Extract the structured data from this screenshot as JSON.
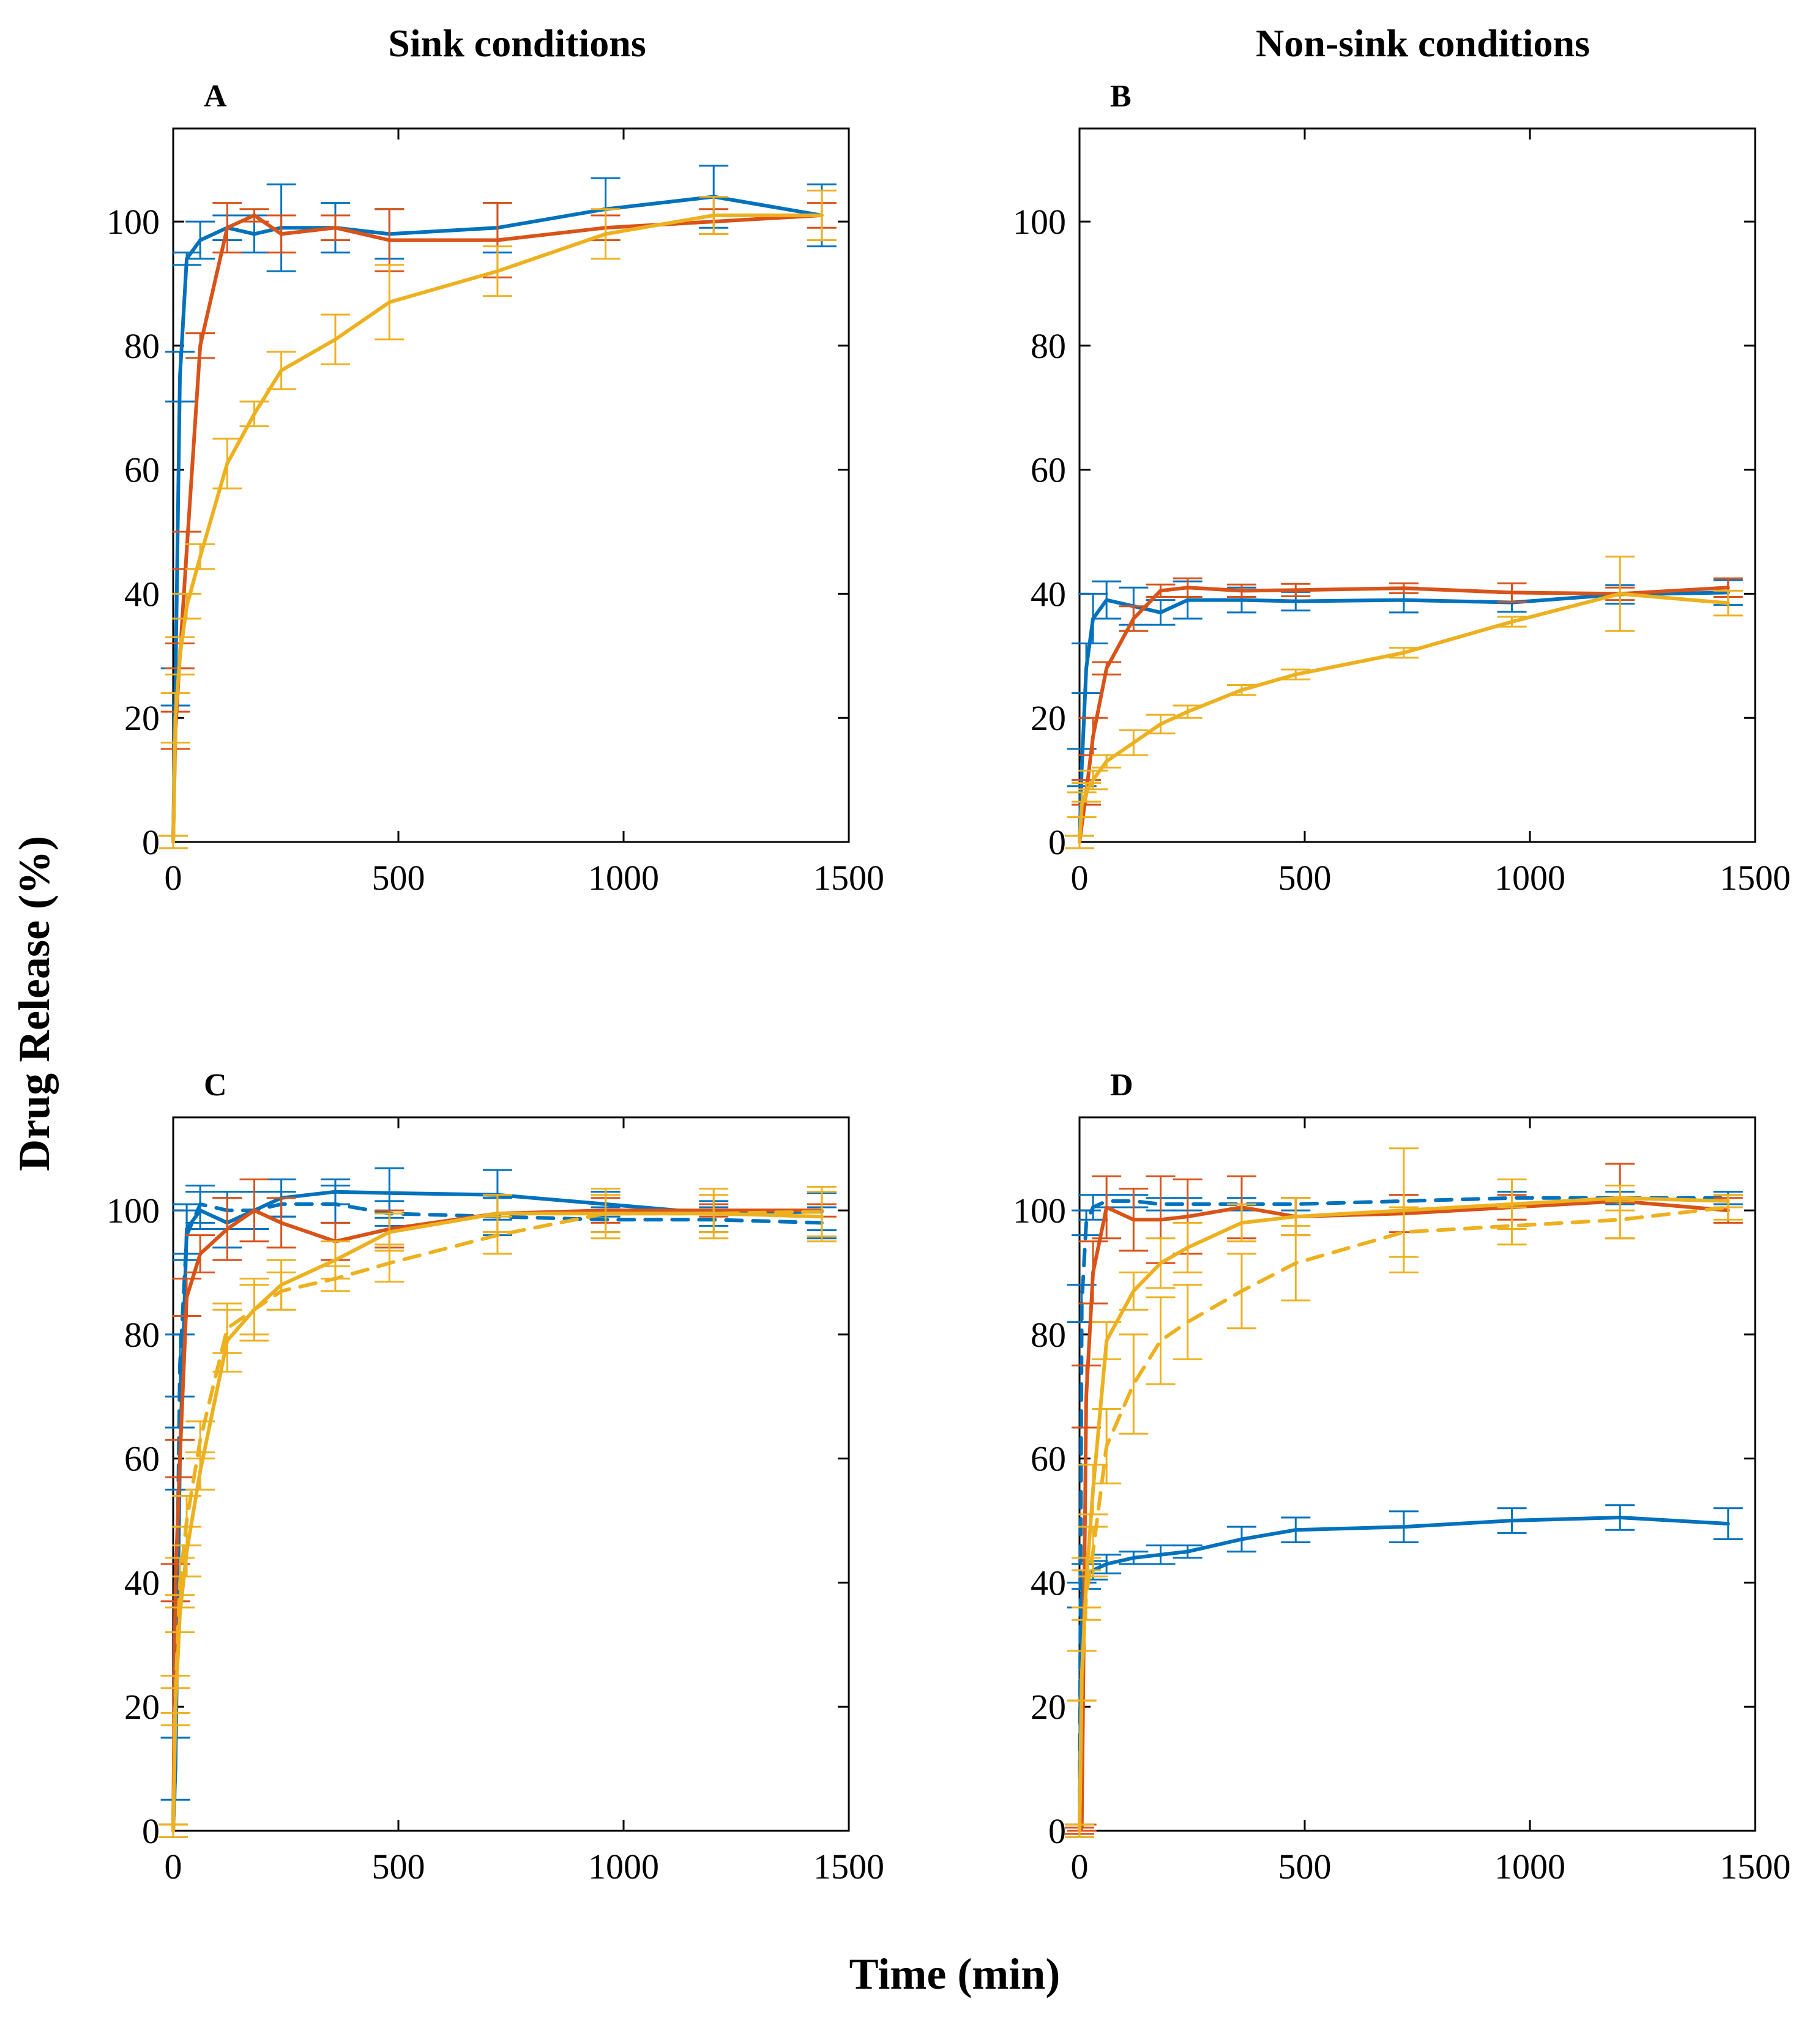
{
  "figure": {
    "column_titles": [
      "Sink conditions",
      "Non-sink conditions"
    ],
    "xlabel": "Time (min)",
    "ylabel": "Drug Release (%)",
    "series_colors": {
      "blue": "#0072BD",
      "orange": "#D95319",
      "yellow": "#EDB120"
    }
  },
  "chart_data": [
    {
      "type": "line",
      "panel": "A",
      "xlim": [
        0,
        1500
      ],
      "ylim": [
        0,
        115
      ],
      "xticks": [
        0,
        500,
        1000,
        1500
      ],
      "yticks": [
        0,
        20,
        40,
        60,
        80,
        100
      ],
      "grid": false,
      "series": [
        {
          "color": "blue",
          "style": "solid",
          "x": [
            0,
            5,
            15,
            30,
            60,
            120,
            180,
            240,
            360,
            480,
            720,
            960,
            1200,
            1440
          ],
          "y": [
            0,
            25,
            75,
            94,
            97,
            99,
            98,
            99,
            99,
            98,
            99,
            102,
            104,
            101
          ],
          "err": [
            1,
            3,
            4,
            1,
            3,
            2,
            3,
            7,
            4,
            4,
            4,
            5,
            5,
            5
          ]
        },
        {
          "color": "orange",
          "style": "solid",
          "x": [
            0,
            5,
            15,
            30,
            60,
            120,
            180,
            240,
            360,
            480,
            720,
            960,
            1200,
            1440
          ],
          "y": [
            0,
            18,
            30,
            47,
            80,
            99,
            101,
            98,
            99,
            97,
            97,
            99,
            100,
            101
          ],
          "err": [
            1,
            3,
            2,
            3,
            2,
            4,
            1,
            3,
            2,
            5,
            6,
            2,
            2,
            2
          ]
        },
        {
          "color": "yellow",
          "style": "solid",
          "x": [
            0,
            5,
            15,
            30,
            60,
            120,
            180,
            240,
            360,
            480,
            720,
            960,
            1200,
            1440
          ],
          "y": [
            0,
            20,
            30,
            38,
            46,
            61,
            69,
            76,
            81,
            87,
            92,
            98,
            101,
            101
          ],
          "err": [
            1,
            4,
            3,
            2,
            2,
            4,
            2,
            3,
            4,
            6,
            4,
            4,
            3,
            4
          ]
        }
      ]
    },
    {
      "type": "line",
      "panel": "B",
      "xlim": [
        0,
        1500
      ],
      "ylim": [
        0,
        115
      ],
      "xticks": [
        0,
        500,
        1000,
        1500
      ],
      "yticks": [
        0,
        20,
        40,
        60,
        80,
        100
      ],
      "grid": false,
      "series": [
        {
          "color": "blue",
          "style": "solid",
          "x": [
            0,
            5,
            15,
            30,
            60,
            120,
            180,
            240,
            360,
            480,
            720,
            960,
            1200,
            1440
          ],
          "y": [
            0,
            12,
            28,
            36,
            39,
            38,
            37,
            39,
            39,
            38.8,
            39,
            38.6,
            39.9,
            40.2
          ],
          "err": [
            1,
            3,
            4,
            4,
            3,
            3,
            2,
            3,
            2,
            1.5,
            2,
            1.5,
            1.5,
            2
          ]
        },
        {
          "color": "orange",
          "style": "solid",
          "x": [
            0,
            15,
            30,
            60,
            120,
            180,
            240,
            360,
            480,
            720,
            960,
            1200,
            1440
          ],
          "y": [
            0,
            8,
            17,
            28,
            36,
            40.5,
            41,
            40.5,
            40.6,
            40.9,
            40.2,
            40,
            41
          ],
          "err": [
            1,
            2,
            3,
            1,
            2,
            1,
            1.5,
            1,
            1,
            0.8,
            1.5,
            1,
            1.5
          ]
        },
        {
          "color": "yellow",
          "style": "solid",
          "x": [
            0,
            5,
            15,
            30,
            60,
            120,
            180,
            240,
            360,
            480,
            720,
            960,
            1200,
            1440
          ],
          "y": [
            0,
            6,
            8,
            10,
            13,
            16,
            19,
            21,
            24.5,
            27,
            30.5,
            35.5,
            40,
            38.5
          ],
          "err": [
            1,
            2,
            1.5,
            1.5,
            1,
            2,
            1.5,
            1,
            0.8,
            0.8,
            0.8,
            0.8,
            6,
            2
          ]
        }
      ]
    },
    {
      "type": "line",
      "panel": "C",
      "xlim": [
        0,
        1500
      ],
      "ylim": [
        0,
        115
      ],
      "xticks": [
        0,
        500,
        1000,
        1500
      ],
      "yticks": [
        0,
        20,
        40,
        60,
        80,
        100
      ],
      "grid": false,
      "series": [
        {
          "color": "blue",
          "style": "solid",
          "x": [
            0,
            5,
            15,
            30,
            60,
            120,
            180,
            240,
            360,
            480,
            720,
            960,
            1200,
            1440
          ],
          "y": [
            0,
            10,
            60,
            97,
            100,
            98,
            100,
            102,
            103,
            102.8,
            102.5,
            101,
            99.5,
            99.8
          ],
          "err": [
            1,
            5,
            5,
            4,
            3,
            4,
            3,
            3,
            2,
            4,
            4,
            2,
            2,
            3
          ]
        },
        {
          "color": "blue",
          "style": "dashed",
          "x": [
            0,
            5,
            15,
            30,
            60,
            120,
            180,
            240,
            360,
            480,
            720,
            960,
            1200,
            1440
          ],
          "y": [
            0,
            20,
            75,
            96,
            101,
            100,
            100,
            101,
            101,
            99.5,
            99,
            98.5,
            98.5,
            98
          ],
          "err": [
            1,
            5,
            5,
            4,
            3,
            3,
            3,
            2,
            3,
            2,
            3,
            2,
            2,
            2.5
          ]
        },
        {
          "color": "orange",
          "style": "solid",
          "x": [
            0,
            5,
            15,
            30,
            60,
            120,
            180,
            240,
            360,
            480,
            720,
            960,
            1200,
            1440
          ],
          "y": [
            0,
            40,
            60,
            86,
            93,
            97,
            100,
            98,
            95,
            97,
            99.5,
            100,
            100,
            100
          ],
          "err": [
            1,
            3,
            3,
            3,
            3,
            5,
            5,
            4,
            3,
            3,
            3,
            2,
            1,
            1
          ]
        },
        {
          "color": "yellow",
          "style": "solid",
          "x": [
            0,
            5,
            15,
            30,
            60,
            120,
            180,
            240,
            360,
            480,
            720,
            960,
            1200,
            1440
          ],
          "y": [
            0,
            20,
            35,
            45,
            58,
            79,
            84,
            88,
            92,
            96.5,
            99.5,
            99.5,
            99.5,
            99
          ],
          "err": [
            1,
            3,
            3,
            4,
            3,
            5,
            5,
            4,
            3,
            3,
            3,
            3,
            3,
            4
          ]
        },
        {
          "color": "yellow",
          "style": "dashed",
          "x": [
            0,
            5,
            15,
            30,
            60,
            120,
            180,
            240,
            360,
            480,
            720,
            960,
            1200,
            1440
          ],
          "y": [
            0,
            22,
            40,
            50,
            63,
            81,
            84,
            87,
            89,
            91.5,
            96,
            99.5,
            99.5,
            99.8
          ],
          "err": [
            1,
            3,
            4,
            4,
            3,
            4,
            4,
            3,
            2,
            3,
            3,
            4,
            4,
            4
          ]
        }
      ]
    },
    {
      "type": "line",
      "panel": "D",
      "xlim": [
        0,
        1500
      ],
      "ylim": [
        0,
        115
      ],
      "xticks": [
        0,
        500,
        1000,
        1500
      ],
      "yticks": [
        0,
        20,
        40,
        60,
        80,
        100
      ],
      "grid": false,
      "series": [
        {
          "color": "blue",
          "style": "solid",
          "x": [
            0,
            5,
            15,
            30,
            60,
            120,
            180,
            240,
            360,
            480,
            720,
            960,
            1200,
            1440
          ],
          "y": [
            0,
            38,
            41,
            42,
            43,
            44,
            44.5,
            45,
            47,
            48.5,
            49,
            50,
            50.5,
            49.5
          ],
          "err": [
            1,
            2,
            2,
            1.5,
            1.5,
            1,
            1.5,
            1,
            2,
            2,
            2.5,
            2,
            2,
            2.5
          ]
        },
        {
          "color": "blue",
          "style": "dashed",
          "x": [
            0,
            5,
            15,
            30,
            60,
            120,
            180,
            240,
            360,
            480,
            720,
            960,
            1200,
            1440
          ],
          "y": [
            0,
            85,
            98,
            100.5,
            101.5,
            101.5,
            101,
            101,
            101,
            101,
            101.5,
            102,
            102,
            102
          ],
          "err": [
            1,
            3,
            2,
            2,
            1,
            1,
            1,
            1,
            1,
            1,
            1,
            1,
            1,
            1
          ]
        },
        {
          "color": "orange",
          "style": "solid",
          "x": [
            0,
            5,
            15,
            30,
            60,
            120,
            180,
            240,
            360,
            480,
            720,
            960,
            1200,
            1440
          ],
          "y": [
            0,
            0.5,
            70,
            90,
            100.5,
            98.5,
            98.5,
            99,
            100.5,
            99,
            99.5,
            100.5,
            101.5,
            100
          ],
          "err": [
            0.5,
            0.5,
            5,
            5,
            5,
            5,
            7,
            6,
            5,
            3,
            3,
            2,
            6,
            2
          ]
        },
        {
          "color": "yellow",
          "style": "solid",
          "x": [
            0,
            5,
            15,
            30,
            60,
            120,
            180,
            240,
            360,
            480,
            720,
            960,
            1200,
            1440
          ],
          "y": [
            0,
            25,
            40,
            55,
            79,
            87,
            91.5,
            94,
            98,
            99,
            100,
            101,
            102,
            101.5
          ],
          "err": [
            1,
            4,
            4,
            4,
            3,
            3,
            4,
            4,
            3,
            3,
            10,
            4,
            2,
            1
          ]
        },
        {
          "color": "yellow",
          "style": "dashed",
          "x": [
            0,
            5,
            15,
            30,
            60,
            120,
            180,
            240,
            360,
            480,
            720,
            960,
            1200,
            1440
          ],
          "y": [
            0,
            25,
            38,
            45,
            62,
            72,
            79,
            82,
            87,
            91.5,
            96.5,
            97.5,
            98.5,
            100.5
          ],
          "err": [
            1,
            4,
            4,
            4,
            6,
            8,
            7,
            6,
            6,
            6,
            4,
            3,
            3,
            2
          ]
        }
      ]
    }
  ]
}
